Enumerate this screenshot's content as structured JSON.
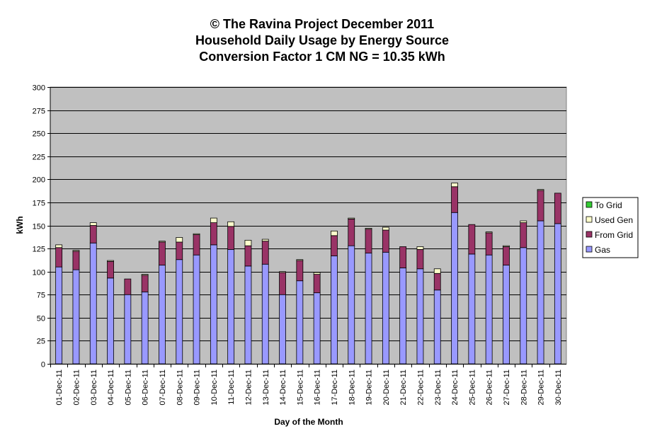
{
  "chart_data": {
    "type": "bar",
    "stacked": true,
    "title": [
      "© The Ravina Project December 2011",
      "Household Daily Usage by Energy Source",
      "Conversion Factor 1 CM NG = 10.35 kWh"
    ],
    "xlabel": "Day of the Month",
    "ylabel": "kWh",
    "ylim": [
      0,
      300
    ],
    "yticks": [
      0,
      25,
      50,
      75,
      100,
      125,
      150,
      175,
      200,
      225,
      250,
      275,
      300
    ],
    "grid": true,
    "plot_background": "#C0C0C0",
    "legend_position": "right",
    "legend_order": [
      "To Grid",
      "Used Gen",
      "From Grid",
      "Gas"
    ],
    "categories": [
      "01-Dec-11",
      "02-Dec-11",
      "03-Dec-11",
      "04-Dec-11",
      "05-Dec-11",
      "06-Dec-11",
      "07-Dec-11",
      "08-Dec-11",
      "09-Dec-11",
      "10-Dec-11",
      "11-Dec-11",
      "12-Dec-11",
      "13-Dec-11",
      "14-Dec-11",
      "15-Dec-11",
      "16-Dec-11",
      "17-Dec-11",
      "18-Dec-11",
      "19-Dec-11",
      "20-Dec-11",
      "21-Dec-11",
      "22-Dec-11",
      "23-Dec-11",
      "24-Dec-11",
      "25-Dec-11",
      "26-Dec-11",
      "27-Dec-11",
      "28-Dec-11",
      "29-Dec-11",
      "30-Dec-11"
    ],
    "series": [
      {
        "name": "Gas",
        "color": "#9999FF",
        "values": [
          105,
          102,
          131,
          93,
          75,
          78,
          107,
          113,
          118,
          129,
          124,
          106,
          108,
          75,
          90,
          77,
          117,
          128,
          120,
          121,
          104,
          103,
          80,
          164,
          119,
          118,
          107,
          126,
          155,
          152
        ]
      },
      {
        "name": "From Grid",
        "color": "#993366",
        "values": [
          21,
          20,
          19,
          18,
          17,
          18,
          25,
          19,
          22,
          24,
          25,
          22,
          25,
          24,
          22,
          20,
          22,
          29,
          26,
          24,
          23,
          21,
          18,
          28,
          32,
          24,
          20,
          27,
          33,
          33
        ]
      },
      {
        "name": "Used Gen",
        "color": "#FFFFCC",
        "values": [
          3,
          1,
          3,
          1,
          0,
          1,
          1,
          5,
          1,
          5,
          5,
          6,
          2,
          1,
          1,
          2,
          5,
          1,
          1,
          3,
          0,
          3,
          5,
          4,
          0,
          1,
          1,
          2,
          1,
          0
        ]
      },
      {
        "name": "To Grid",
        "color": "#33CC33",
        "values": [
          0,
          0,
          0,
          0,
          0,
          0,
          0,
          0,
          0,
          0,
          0,
          0,
          0,
          0,
          0,
          0,
          0,
          0,
          0,
          0,
          0,
          0,
          0,
          0,
          0,
          0,
          0,
          0,
          0,
          0
        ]
      }
    ]
  }
}
